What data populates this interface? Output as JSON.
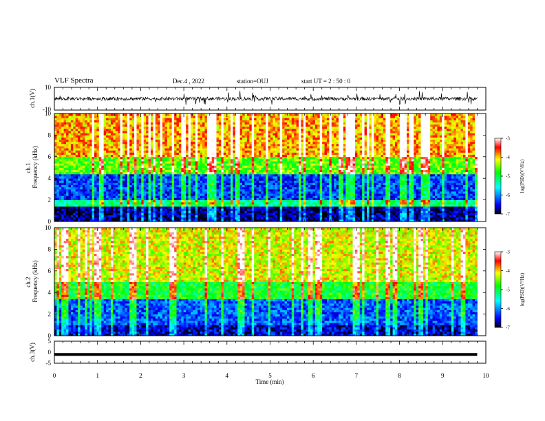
{
  "header": {
    "title": "VLF Spectra",
    "date": "Dec.4 , 2022",
    "station": "station=OUJ",
    "start": "start UT = 2 : 50 : 0"
  },
  "chart_data": [
    {
      "type": "line",
      "panel": "ch1-waveform",
      "ylabel": "ch.1(V)",
      "xlim": [
        0,
        10
      ],
      "ylim": [
        -10,
        10
      ],
      "yticks": [
        "10",
        "-10"
      ],
      "series": [
        {
          "values": [
            0
          ]
        }
      ]
    },
    {
      "type": "heatmap",
      "panel": "ch1-spectrogram",
      "ylabel": "ch.1 Frequency (kHz)",
      "xlim": [
        0,
        9.8
      ],
      "ylim": [
        0,
        10
      ],
      "yticks": [
        "0",
        "2",
        "4",
        "6",
        "8",
        "10"
      ],
      "colorbar": {
        "label": "log(PSD)(V²/Hz)",
        "range": [
          -7,
          -3
        ],
        "ticks": [
          "-3",
          "-4",
          "-5",
          "-6",
          "-7"
        ]
      },
      "bands": [
        {
          "fmin": 0,
          "fmax": 1.5,
          "log_psd": -6.8
        },
        {
          "fmin": 1.5,
          "fmax": 2.0,
          "log_psd": -5.2
        },
        {
          "fmin": 2.0,
          "fmax": 4.5,
          "log_psd": -6.3
        },
        {
          "fmin": 4.5,
          "fmax": 6.0,
          "log_psd": -4.6
        },
        {
          "fmin": 6.0,
          "fmax": 10.0,
          "log_psd": -3.9
        }
      ]
    },
    {
      "type": "heatmap",
      "panel": "ch2-spectrogram",
      "ylabel": "ch.2 Frequency (kHz)",
      "xlim": [
        0,
        9.8
      ],
      "ylim": [
        0,
        10
      ],
      "yticks": [
        "0",
        "2",
        "4",
        "6",
        "8",
        "10"
      ],
      "colorbar": {
        "label": "log(PSD)(V²/Hz)",
        "range": [
          -7,
          -3
        ],
        "ticks": [
          "-3",
          "-4",
          "-5",
          "-6",
          "-7"
        ]
      },
      "bands": [
        {
          "fmin": 0,
          "fmax": 1.0,
          "log_psd": -6.6
        },
        {
          "fmin": 1.0,
          "fmax": 3.5,
          "log_psd": -6.2
        },
        {
          "fmin": 3.5,
          "fmax": 5.0,
          "log_psd": -4.9
        },
        {
          "fmin": 5.0,
          "fmax": 10.0,
          "log_psd": -4.2
        }
      ]
    },
    {
      "type": "line",
      "panel": "ch3-waveform",
      "ylabel": "ch.3(V)",
      "xlim": [
        0,
        10
      ],
      "ylim": [
        -5,
        5
      ],
      "yticks": [
        "5",
        "0",
        "-5"
      ],
      "xlabel": "Time (min)",
      "xticks": [
        "0",
        "1",
        "2",
        "3",
        "4",
        "5",
        "6",
        "7",
        "8",
        "9",
        "10"
      ],
      "series": [
        {
          "values": [
            -1.0
          ]
        }
      ]
    }
  ]
}
